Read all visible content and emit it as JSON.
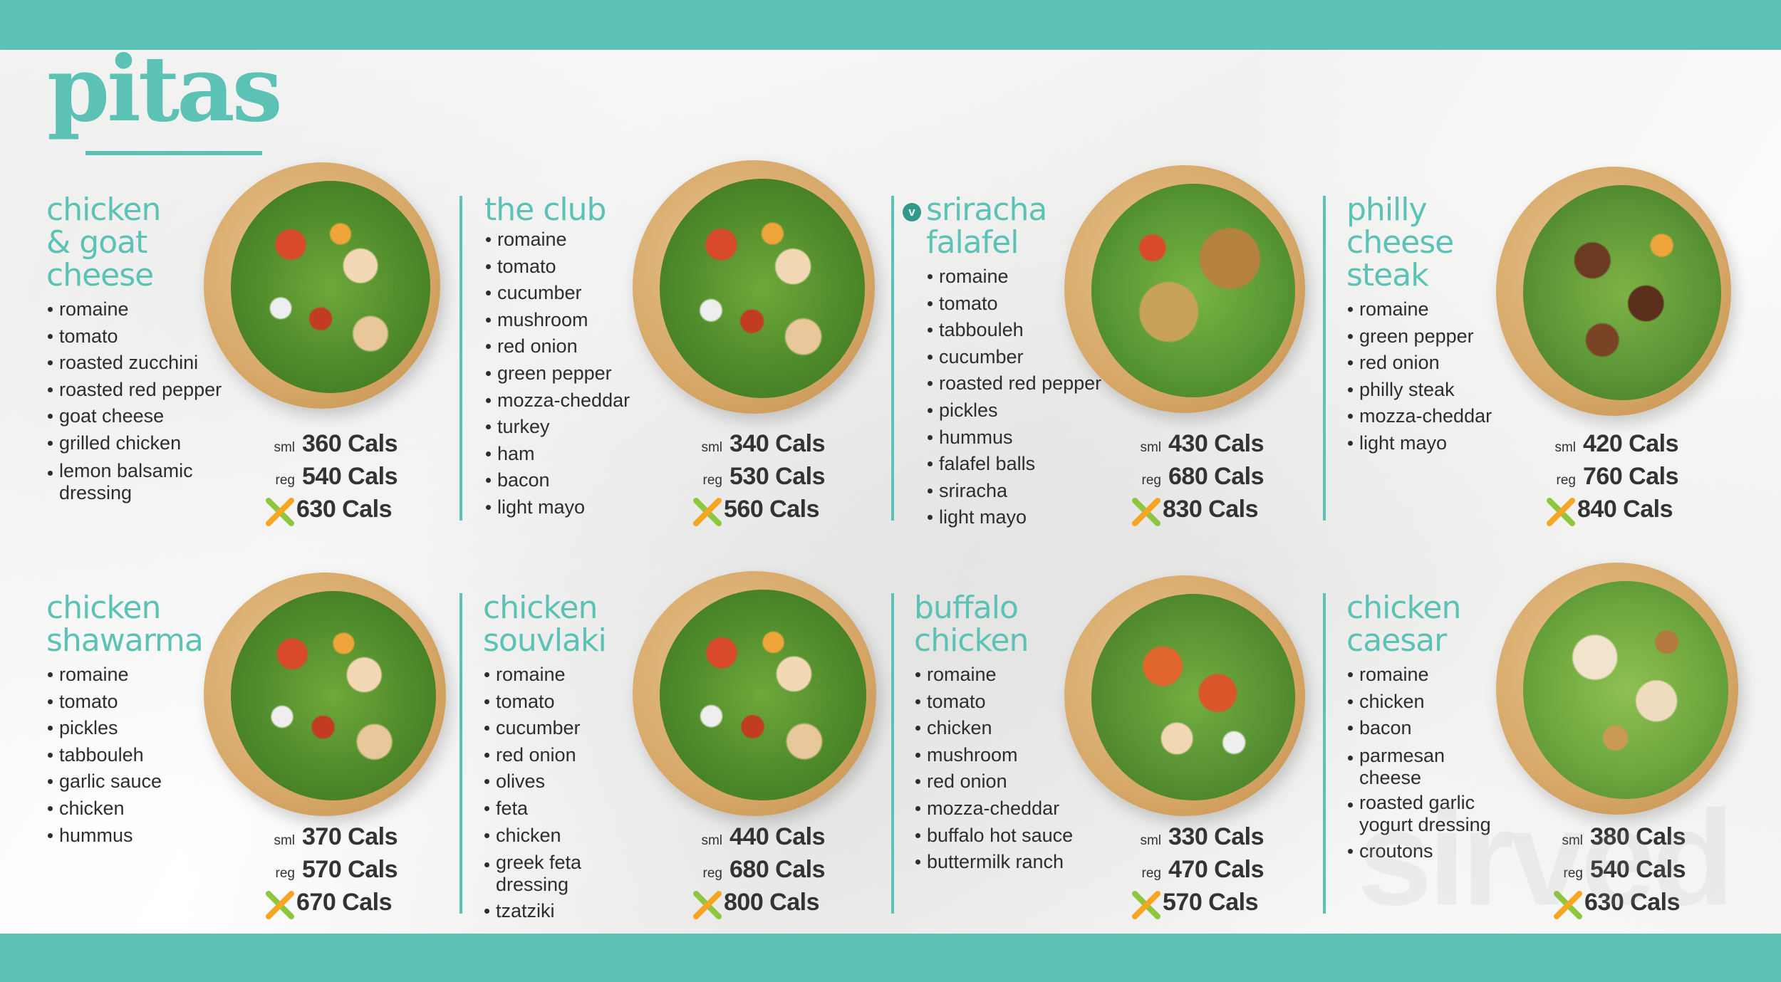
{
  "page": {
    "title": "pitas",
    "watermark": "sirved"
  },
  "cal_units": {
    "small": "sml",
    "regular": "reg",
    "xl_icon": "x-large-icon"
  },
  "colors": {
    "accent": "#5bc2b5",
    "text": "#2d2d2d",
    "xl_green": "#8dc63f",
    "xl_orange": "#f5a623"
  },
  "items": [
    {
      "name_lines": [
        "chicken",
        "& goat",
        "cheese"
      ],
      "ingredients": [
        "romaine",
        "tomato",
        "roasted zucchini",
        "roasted red pepper",
        "goat cheese",
        "grilled chicken",
        "lemon balsamic\ndressing"
      ],
      "calories": {
        "small": "360 Cals",
        "regular": "540 Cals",
        "xl": "630 Cals"
      }
    },
    {
      "name_lines": [
        "the club"
      ],
      "ingredients": [
        "romaine",
        "tomato",
        "cucumber",
        "mushroom",
        "red onion",
        "green pepper",
        "mozza-cheddar",
        "turkey",
        "ham",
        "bacon",
        "light mayo"
      ],
      "calories": {
        "small": "340 Cals",
        "regular": "530 Cals",
        "xl": "560 Cals"
      }
    },
    {
      "name_lines": [
        "sriracha",
        "falafel"
      ],
      "veg_badge": "v",
      "ingredients": [
        "romaine",
        "tomato",
        "tabbouleh",
        "cucumber",
        "roasted red pepper",
        "pickles",
        "hummus",
        "falafel balls",
        "sriracha",
        "light mayo"
      ],
      "calories": {
        "small": "430 Cals",
        "regular": "680 Cals",
        "xl": "830 Cals"
      }
    },
    {
      "name_lines": [
        "philly",
        "cheese",
        "steak"
      ],
      "ingredients": [
        "romaine",
        "green pepper",
        "red onion",
        "philly steak",
        "mozza-cheddar",
        "light mayo"
      ],
      "calories": {
        "small": "420 Cals",
        "regular": "760 Cals",
        "xl": "840 Cals"
      }
    },
    {
      "name_lines": [
        "chicken",
        "shawarma"
      ],
      "ingredients": [
        "romaine",
        "tomato",
        "pickles",
        "tabbouleh",
        "garlic sauce",
        "chicken",
        "hummus"
      ],
      "calories": {
        "small": "370 Cals",
        "regular": "570 Cals",
        "xl": "670 Cals"
      }
    },
    {
      "name_lines": [
        "chicken",
        "souvlaki"
      ],
      "ingredients": [
        "romaine",
        "tomato",
        "cucumber",
        "red onion",
        "olives",
        "feta",
        "chicken",
        "greek feta\ndressing",
        "tzatziki"
      ],
      "calories": {
        "small": "440 Cals",
        "regular": "680 Cals",
        "xl": "800 Cals"
      }
    },
    {
      "name_lines": [
        "buffalo",
        "chicken"
      ],
      "ingredients": [
        "romaine",
        "tomato",
        "chicken",
        "mushroom",
        "red onion",
        "mozza-cheddar",
        "buffalo hot sauce",
        "buttermilk ranch"
      ],
      "calories": {
        "small": "330 Cals",
        "regular": "470 Cals",
        "xl": "570 Cals"
      }
    },
    {
      "name_lines": [
        "chicken",
        "caesar"
      ],
      "ingredients": [
        "romaine",
        "chicken",
        "bacon",
        "parmesan\ncheese",
        "roasted garlic\nyogurt dressing",
        "croutons"
      ],
      "calories": {
        "small": "380 Cals",
        "regular": "540 Cals",
        "xl": "630 Cals"
      }
    }
  ]
}
